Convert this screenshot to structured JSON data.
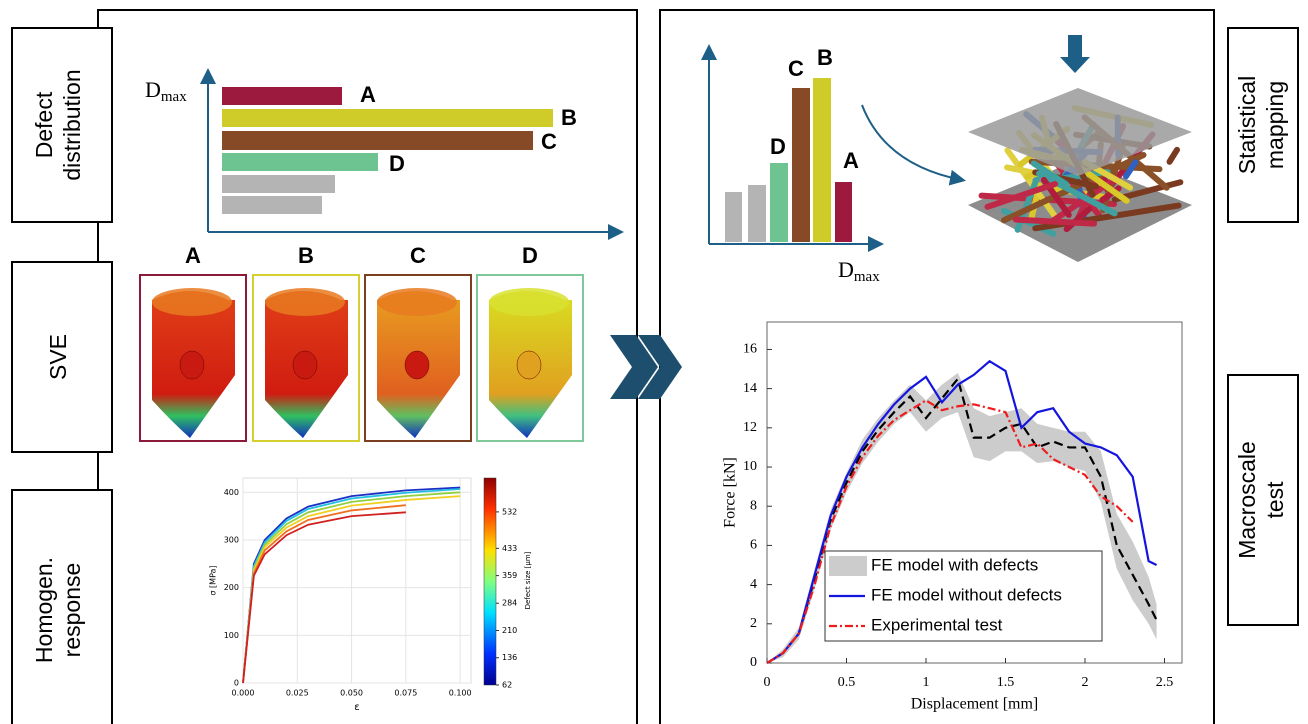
{
  "side_labels": {
    "left": [
      {
        "lines": [
          "Defect",
          "distribution"
        ]
      },
      {
        "lines": [
          "SVE"
        ]
      },
      {
        "lines": [
          "Homogen.",
          "response"
        ]
      }
    ],
    "right": [
      {
        "lines": [
          "Statistical",
          "mapping"
        ]
      },
      {
        "lines": [
          "Macroscale",
          "test"
        ]
      }
    ]
  },
  "defect_distribution": {
    "axis_label": "D",
    "axis_subscript": "max",
    "labels": [
      "A",
      "B",
      "C",
      "D"
    ]
  },
  "sve": {
    "labels": [
      "A",
      "B",
      "C",
      "D"
    ]
  },
  "statistical_mapping": {
    "axis_label": "D",
    "axis_subscript": "max",
    "labels": [
      "D",
      "C",
      "B",
      "A"
    ]
  },
  "chart_data": [
    {
      "type": "line",
      "x_label": "ε",
      "y_label": "σ [MPa]",
      "x": [
        0,
        0.005,
        0.01,
        0.02,
        0.03,
        0.05,
        0.075,
        0.1
      ],
      "series": [
        {
          "color": "#1a2fc8",
          "values": [
            0,
            250,
            300,
            345,
            370,
            392,
            404,
            410
          ]
        },
        {
          "color": "#22c0e0",
          "values": [
            0,
            245,
            295,
            340,
            365,
            387,
            399,
            407
          ]
        },
        {
          "color": "#92d040",
          "values": [
            0,
            240,
            290,
            333,
            358,
            380,
            392,
            400
          ]
        },
        {
          "color": "#f0d020",
          "values": [
            0,
            235,
            285,
            326,
            350,
            372,
            384,
            392
          ]
        },
        {
          "color": "#f07020",
          "values": [
            0,
            230,
            278,
            318,
            342,
            362,
            373,
            null
          ]
        },
        {
          "color": "#d02020",
          "values": [
            0,
            225,
            270,
            310,
            332,
            350,
            358,
            null
          ]
        }
      ],
      "xlim": [
        0,
        0.105
      ],
      "ylim": [
        0,
        430
      ],
      "xticks": [
        {
          "value": 0,
          "label": "0.000"
        },
        {
          "value": 0.025,
          "label": "0.025"
        },
        {
          "value": 0.05,
          "label": "0.050"
        },
        {
          "value": 0.075,
          "label": "0.075"
        },
        {
          "value": 0.1,
          "label": "0.100"
        }
      ],
      "yticks": [
        0,
        100,
        200,
        300,
        400
      ],
      "grid": true,
      "colorbar": {
        "label": "Defect size [μm]",
        "lim": [
          62,
          624
        ],
        "ticks": [
          62,
          136,
          210,
          284,
          359,
          433,
          532
        ]
      }
    },
    {
      "type": "line",
      "x_label": "Displacement [mm]",
      "y_label": "Force [kN]",
      "x": [
        0,
        0.1,
        0.2,
        0.3,
        0.4,
        0.5,
        0.6,
        0.7,
        0.8,
        0.9,
        1.0,
        1.1,
        1.2,
        1.3,
        1.4,
        1.5,
        1.6,
        1.7,
        1.8,
        1.9,
        2.0,
        2.1,
        2.2,
        2.3,
        2.4,
        2.45
      ],
      "series": [
        {
          "name": "FE model with defects",
          "color": "#cccccc",
          "lower": [
            0,
            0.3,
            1.2,
            3.8,
            6.8,
            8.7,
            10.2,
            11.3,
            12.2,
            12.8,
            11.8,
            12.5,
            12.8,
            10.5,
            10.3,
            10.8,
            10.8,
            10.2,
            10.3,
            10.0,
            9.8,
            8.2,
            4.8,
            3.2,
            2.0,
            1.2
          ],
          "upper": [
            0,
            0.7,
            1.8,
            4.8,
            7.8,
            9.7,
            11.4,
            12.5,
            13.4,
            14.2,
            13.4,
            14.2,
            14.8,
            13.0,
            12.6,
            12.8,
            13.0,
            12.2,
            12.0,
            11.8,
            11.8,
            10.8,
            7.6,
            6.2,
            4.4,
            3.0
          ]
        },
        {
          "color": "#000000",
          "style": "dashed",
          "values": [
            0,
            0.5,
            1.5,
            4.3,
            7.3,
            9.2,
            10.8,
            11.9,
            12.8,
            13.6,
            12.5,
            13.5,
            14.5,
            11.5,
            11.5,
            12,
            12.2,
            11,
            11.3,
            11,
            11,
            9.5,
            6,
            4.5,
            3,
            2.2
          ]
        },
        {
          "name": "FE model without defects",
          "color": "#1515e0",
          "style": "solid",
          "values": [
            0,
            0.5,
            1.5,
            4.5,
            7.5,
            9.5,
            11,
            12.2,
            13.2,
            14,
            14.6,
            13.3,
            14.2,
            14.7,
            15.4,
            14.9,
            12,
            12.8,
            13,
            11.8,
            11.2,
            11,
            10.6,
            9.5,
            5.2,
            5.0
          ]
        },
        {
          "name": "Experimental test",
          "color": "#ee1c1c",
          "style": "dash-dot",
          "values": [
            0,
            0.5,
            1.5,
            4,
            7,
            9,
            10.5,
            11.6,
            12.4,
            12.9,
            13.4,
            12.9,
            13.1,
            13.2,
            13,
            12.8,
            11,
            11.2,
            10.4,
            10,
            9.6,
            8.5,
            8,
            7.2,
            null,
            null
          ]
        }
      ],
      "xlim": [
        0,
        2.61
      ],
      "ylim": [
        0,
        17.4
      ],
      "xticks": [
        0,
        0.5,
        1,
        1.5,
        2,
        2.5
      ],
      "yticks": [
        0,
        2,
        4,
        6,
        8,
        10,
        12,
        14,
        16
      ],
      "grid": false,
      "legend": "lower left"
    }
  ]
}
